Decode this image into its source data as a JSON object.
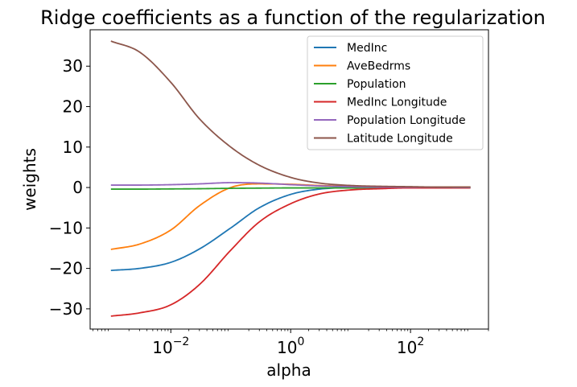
{
  "chart_data": {
    "type": "line",
    "title": "Ridge coefficients as a function of the regularization",
    "xlabel": "alpha",
    "ylabel": "weights",
    "xscale": "log",
    "xlim": [
      0.00045,
      2000
    ],
    "ylim": [
      -35,
      39
    ],
    "grid": false,
    "legend_position": "top-right",
    "x_ticks": [
      {
        "value": 0.01,
        "base": "10",
        "exp": "−2"
      },
      {
        "value": 1,
        "base": "10",
        "exp": "0"
      },
      {
        "value": 100,
        "base": "10",
        "exp": "2"
      }
    ],
    "y_ticks": [
      {
        "value": -30,
        "label": "−30"
      },
      {
        "value": -20,
        "label": "−20"
      },
      {
        "value": -10,
        "label": "−10"
      },
      {
        "value": 0,
        "label": "0"
      },
      {
        "value": 10,
        "label": "10"
      },
      {
        "value": 20,
        "label": "20"
      },
      {
        "value": 30,
        "label": "30"
      }
    ],
    "x": [
      0.001,
      0.003,
      0.01,
      0.03,
      0.1,
      0.3,
      1,
      3,
      10,
      30,
      100,
      300,
      1000
    ],
    "series": [
      {
        "name": "MedInc",
        "color": "#1f77b4",
        "values": [
          -20.5,
          -20.0,
          -18.5,
          -15.2,
          -10.0,
          -5.0,
          -1.7,
          -0.4,
          0.0,
          0.1,
          0.1,
          0.1,
          0.1
        ]
      },
      {
        "name": "AveBedrms",
        "color": "#ff7f0e",
        "values": [
          -15.3,
          -14.0,
          -10.5,
          -4.5,
          0.0,
          0.9,
          0.8,
          0.5,
          0.3,
          0.2,
          0.1,
          0.1,
          0.1
        ]
      },
      {
        "name": "Population",
        "color": "#2ca02c",
        "values": [
          -0.4,
          -0.4,
          -0.35,
          -0.3,
          -0.2,
          -0.15,
          -0.1,
          -0.1,
          -0.1,
          -0.05,
          0.0,
          0.0,
          0.0
        ]
      },
      {
        "name": "MedInc Longitude",
        "color": "#d62728",
        "values": [
          -31.8,
          -31.0,
          -29.0,
          -24.0,
          -15.5,
          -8.5,
          -4.0,
          -1.6,
          -0.6,
          -0.3,
          -0.1,
          -0.1,
          -0.1
        ]
      },
      {
        "name": "Population Longitude",
        "color": "#9467bd",
        "values": [
          0.6,
          0.6,
          0.7,
          0.9,
          1.2,
          1.1,
          0.7,
          0.4,
          0.2,
          0.1,
          0.1,
          0.05,
          0.0
        ]
      },
      {
        "name": "Latitude Longitude",
        "color": "#8c564b",
        "values": [
          36.2,
          33.5,
          26.0,
          17.0,
          10.0,
          5.5,
          2.5,
          1.1,
          0.5,
          0.3,
          0.2,
          0.1,
          0.1
        ]
      }
    ]
  }
}
